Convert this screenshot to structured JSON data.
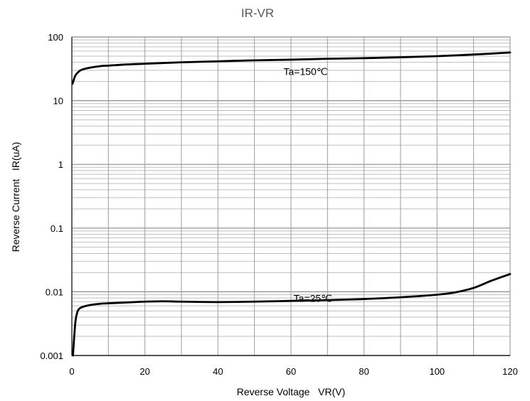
{
  "chart_data": {
    "type": "line",
    "title": "IR-VR",
    "xlabel": "Reverse Voltage   VR(V)",
    "ylabel": "Reverse Current   IR(uA)",
    "xlim": [
      0,
      120
    ],
    "ylim": [
      0.001,
      100
    ],
    "yscale": "log",
    "grid": true,
    "x_ticks": [
      "0",
      "20",
      "40",
      "60",
      "80",
      "100",
      "120"
    ],
    "y_ticks": [
      "0.001",
      "0.01",
      "0.1",
      "1",
      "10",
      "100"
    ],
    "series": [
      {
        "name": "Ta=150℃",
        "color": "#000000",
        "x": [
          0.2,
          0.5,
          1,
          2,
          3,
          5,
          8,
          10,
          15,
          20,
          30,
          40,
          50,
          60,
          70,
          80,
          90,
          100,
          110,
          120
        ],
        "y": [
          18.5,
          21,
          25,
          29,
          31,
          33,
          35,
          35.5,
          37,
          38,
          40,
          41.5,
          43,
          44,
          45.5,
          46.5,
          48,
          50,
          53,
          57
        ]
      },
      {
        "name": "Ta=25℃",
        "color": "#000000",
        "x": [
          0.3,
          0.6,
          1,
          1.5,
          2,
          3,
          5,
          8,
          10,
          15,
          20,
          25,
          30,
          40,
          50,
          60,
          70,
          80,
          90,
          100,
          105,
          110,
          115,
          120
        ],
        "y": [
          0.001,
          0.0018,
          0.0035,
          0.0048,
          0.0054,
          0.0058,
          0.0062,
          0.0065,
          0.0066,
          0.0068,
          0.007,
          0.0071,
          0.007,
          0.0069,
          0.007,
          0.0072,
          0.0074,
          0.0077,
          0.0082,
          0.009,
          0.0098,
          0.0115,
          0.015,
          0.019
        ]
      }
    ],
    "annotations": [
      {
        "text": "Ta=150℃",
        "series": 0
      },
      {
        "text": "Ta=25℃",
        "series": 1
      }
    ]
  }
}
